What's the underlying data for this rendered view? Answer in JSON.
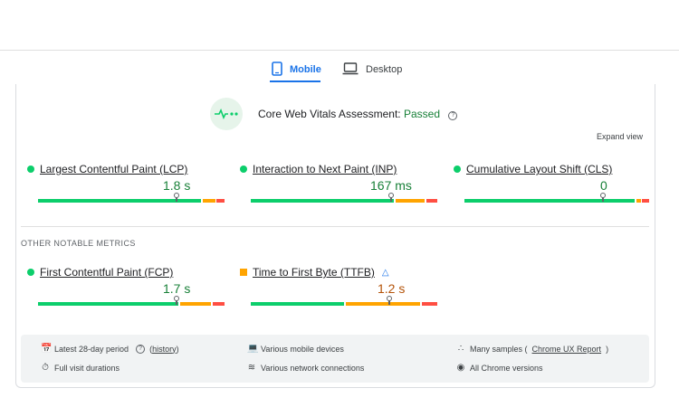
{
  "tabs": [
    {
      "label": "Mobile",
      "active": true,
      "icon": "phone-icon"
    },
    {
      "label": "Desktop",
      "active": false,
      "icon": "laptop-icon"
    }
  ],
  "assessment": {
    "title": "Core Web Vitals Assessment:",
    "status": "Passed",
    "icon": "pulse-icon",
    "expand_label": "Expand view"
  },
  "core_metrics": [
    {
      "name": "Largest Contentful Paint (LCP)",
      "value": "1.8 s",
      "rating": "good"
    },
    {
      "name": "Interaction to Next Paint (INP)",
      "value": "167 ms",
      "rating": "good"
    },
    {
      "name": "Cumulative Layout Shift (CLS)",
      "value": "0",
      "rating": "good"
    }
  ],
  "other_heading": "OTHER NOTABLE METRICS",
  "other_metrics": [
    {
      "name": "First Contentful Paint (FCP)",
      "value": "1.7 s",
      "rating": "good"
    },
    {
      "name": "Time to First Byte (TTFB)",
      "value": "1.2 s",
      "rating": "average",
      "experimental_icon": "flask-icon"
    }
  ],
  "info": {
    "period": "Latest 28-day period",
    "history": "history",
    "devices": "Various mobile devices",
    "samples_prefix": "Many samples (",
    "samples_link": "Chrome UX Report",
    "samples_suffix": ")",
    "visit": "Full visit durations",
    "network": "Various network connections",
    "versions": "All Chrome versions"
  },
  "colors": {
    "good": "#0cce6b",
    "average": "#ffa400",
    "poor": "#ff4e42",
    "accent": "#1a73e8"
  }
}
